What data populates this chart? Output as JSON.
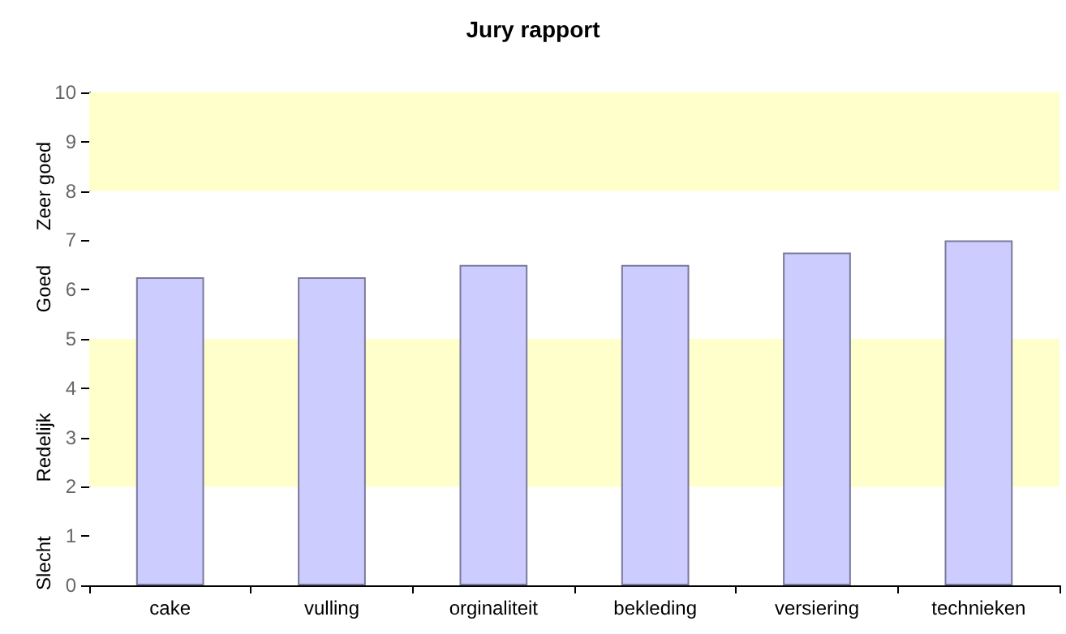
{
  "chart_data": {
    "type": "bar",
    "title": "Jury rapport",
    "categories": [
      "cake",
      "vulling",
      "orginaliteit",
      "bekleding",
      "versiering",
      "technieken"
    ],
    "values": [
      6.25,
      6.25,
      6.5,
      6.5,
      6.75,
      7
    ],
    "color": "#ccccff",
    "ylim": [
      0,
      10
    ],
    "yticks": [
      0,
      1,
      2,
      3,
      4,
      5,
      6,
      7,
      8,
      9,
      10
    ],
    "grid": false,
    "bands": [
      {
        "axis": "y",
        "from": 0,
        "to": 2,
        "label": "Slecht",
        "color": "#ffffff"
      },
      {
        "axis": "y",
        "from": 2,
        "to": 5,
        "label": "Redelijk",
        "color": "#ffffcc"
      },
      {
        "axis": "y",
        "from": 5,
        "to": 8,
        "label": "Goed",
        "color": "#ffffff"
      },
      {
        "axis": "y",
        "from": 8,
        "to": 10,
        "label": "Zeer goed",
        "color": "#ffffcc"
      }
    ]
  }
}
